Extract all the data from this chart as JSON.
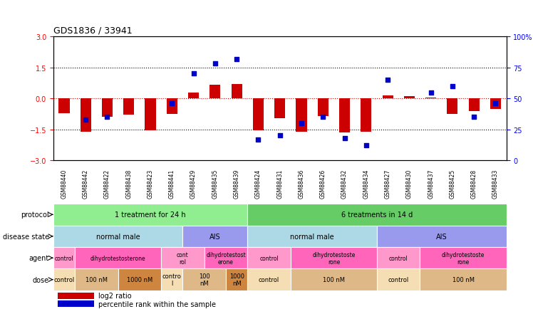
{
  "title": "GDS1836 / 33941",
  "samples": [
    "GSM88440",
    "GSM88442",
    "GSM88422",
    "GSM88438",
    "GSM88423",
    "GSM88441",
    "GSM88429",
    "GSM88435",
    "GSM88439",
    "GSM88424",
    "GSM88431",
    "GSM88436",
    "GSM88426",
    "GSM88432",
    "GSM88434",
    "GSM88427",
    "GSM88430",
    "GSM88437",
    "GSM88425",
    "GSM88428",
    "GSM88433"
  ],
  "log2_ratio": [
    -0.7,
    -1.6,
    -0.9,
    -0.8,
    -1.55,
    -0.75,
    0.3,
    0.65,
    0.7,
    -1.55,
    -0.95,
    -1.6,
    -0.85,
    -1.65,
    -1.6,
    0.15,
    0.1,
    0.05,
    -0.75,
    -0.6,
    -0.5
  ],
  "percentile_rank": [
    null,
    33,
    35,
    null,
    null,
    46,
    70,
    78,
    82,
    17,
    20,
    30,
    35,
    18,
    12,
    65,
    null,
    55,
    60,
    35,
    46
  ],
  "protocol_groups": [
    {
      "label": "1 treatment for 24 h",
      "start": 0,
      "end": 8,
      "color": "#90EE90"
    },
    {
      "label": "6 treatments in 14 d",
      "start": 9,
      "end": 20,
      "color": "#66CC66"
    }
  ],
  "disease_state_groups": [
    {
      "label": "normal male",
      "start": 0,
      "end": 5,
      "color": "#ADD8E6"
    },
    {
      "label": "AIS",
      "start": 6,
      "end": 8,
      "color": "#9999EE"
    },
    {
      "label": "normal male",
      "start": 9,
      "end": 14,
      "color": "#ADD8E6"
    },
    {
      "label": "AIS",
      "start": 15,
      "end": 20,
      "color": "#9999EE"
    }
  ],
  "agent_groups": [
    {
      "label": "control",
      "start": 0,
      "end": 0,
      "color": "#FF99CC"
    },
    {
      "label": "dihydrotestosterone",
      "start": 1,
      "end": 4,
      "color": "#FF66BB"
    },
    {
      "label": "cont\nrol",
      "start": 5,
      "end": 6,
      "color": "#FF99CC"
    },
    {
      "label": "dihydrotestost\nerone",
      "start": 7,
      "end": 8,
      "color": "#FF66BB"
    },
    {
      "label": "control",
      "start": 9,
      "end": 10,
      "color": "#FF99CC"
    },
    {
      "label": "dihydrotestoste\nrone",
      "start": 11,
      "end": 14,
      "color": "#FF66BB"
    },
    {
      "label": "control",
      "start": 15,
      "end": 16,
      "color": "#FF99CC"
    },
    {
      "label": "dihydrotestoste\nrone",
      "start": 17,
      "end": 20,
      "color": "#FF66BB"
    }
  ],
  "dose_groups": [
    {
      "label": "control",
      "start": 0,
      "end": 0,
      "color": "#F5DEB3"
    },
    {
      "label": "100 nM",
      "start": 1,
      "end": 2,
      "color": "#DEB887"
    },
    {
      "label": "1000 nM",
      "start": 3,
      "end": 4,
      "color": "#CD853F"
    },
    {
      "label": "contro\nl",
      "start": 5,
      "end": 5,
      "color": "#F5DEB3"
    },
    {
      "label": "100\nnM",
      "start": 6,
      "end": 7,
      "color": "#DEB887"
    },
    {
      "label": "1000\nnM",
      "start": 8,
      "end": 8,
      "color": "#CD853F"
    },
    {
      "label": "control",
      "start": 9,
      "end": 10,
      "color": "#F5DEB3"
    },
    {
      "label": "100 nM",
      "start": 11,
      "end": 14,
      "color": "#DEB887"
    },
    {
      "label": "control",
      "start": 15,
      "end": 16,
      "color": "#F5DEB3"
    },
    {
      "label": "100 nM",
      "start": 17,
      "end": 20,
      "color": "#DEB887"
    }
  ],
  "bar_color": "#CC0000",
  "dot_color": "#0000CC",
  "ylim_left": [
    -3,
    3
  ],
  "ylim_right": [
    0,
    100
  ],
  "yticks_left": [
    -3,
    -1.5,
    0,
    1.5,
    3
  ],
  "yticks_right": [
    0,
    25,
    50,
    75,
    100
  ],
  "yticklabels_right": [
    "0",
    "25",
    "50",
    "75",
    "100%"
  ],
  "legend_items": [
    {
      "label": "log2 ratio",
      "color": "#CC0000"
    },
    {
      "label": "percentile rank within the sample",
      "color": "#0000CC"
    }
  ],
  "row_labels": [
    "protocol",
    "disease state",
    "agent",
    "dose"
  ]
}
